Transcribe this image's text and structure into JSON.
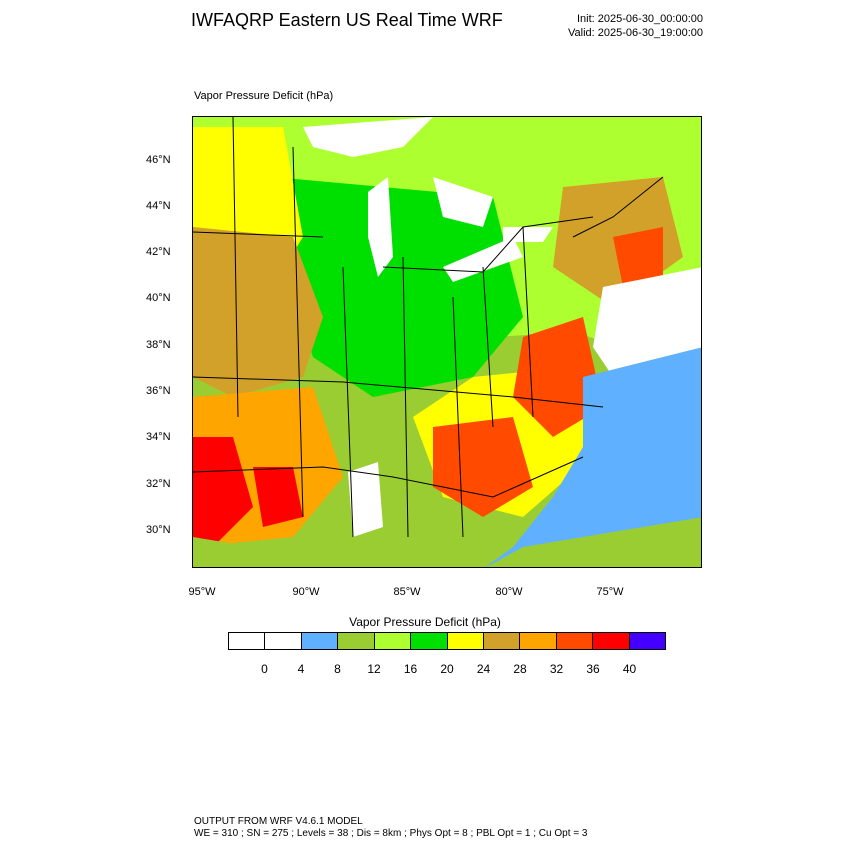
{
  "title": "IWFAQRP Eastern US Real Time WRF",
  "init": "Init: 2025-06-30_00:00:00",
  "valid": "Valid: 2025-06-30_19:00:00",
  "plot_label": "Vapor Pressure Deficit   (hPa)",
  "lat_ticks": [
    "46°N",
    "44°N",
    "42°N",
    "40°N",
    "38°N",
    "36°N",
    "34°N",
    "32°N",
    "30°N"
  ],
  "lon_ticks": [
    "95°W",
    "90°W",
    "85°W",
    "80°W",
    "75°W"
  ],
  "colorbar": {
    "title": "Vapor Pressure Deficit   (hPa)",
    "colors": [
      "#ffffff",
      "#ffffff",
      "#5fb0ff",
      "#9acd32",
      "#adff2f",
      "#00e000",
      "#ffff00",
      "#d2a12a",
      "#ffa500",
      "#ff4a00",
      "#ff0000",
      "#4400ff"
    ],
    "labels": [
      "0",
      "4",
      "8",
      "12",
      "16",
      "20",
      "24",
      "28",
      "32",
      "36",
      "40"
    ]
  },
  "footer": {
    "line1": "OUTPUT FROM WRF V4.6.1 MODEL",
    "line2": "WE = 310 ; SN = 275 ; Levels = 38 ; Dis = 8km ; Phys Opt = 8 ; PBL Opt = 1 ; Cu Opt = 3"
  }
}
